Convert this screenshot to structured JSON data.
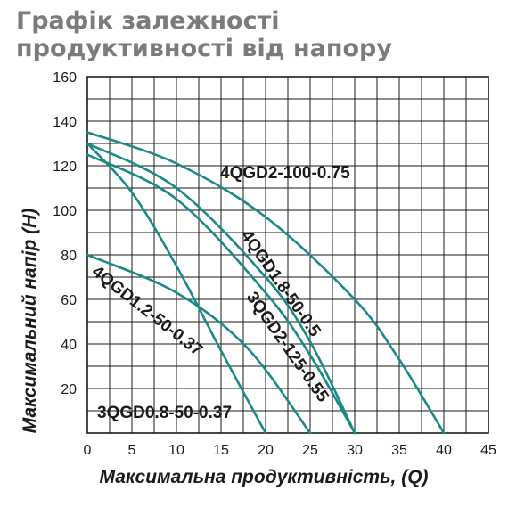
{
  "chart_data": {
    "type": "line",
    "title": "Графік залежності продуктивності від напору",
    "xlabel": "Максимальна продуктивність, (Q)",
    "ylabel": "Максимальний напір (H)",
    "xlim": [
      0,
      45
    ],
    "ylim": [
      0,
      160
    ],
    "xticks": [
      "0",
      "5",
      "10",
      "15",
      "20",
      "25",
      "30",
      "35",
      "40",
      "45"
    ],
    "yticks": [
      "20",
      "40",
      "60",
      "80",
      "100",
      "120",
      "140",
      "160"
    ],
    "grid": true,
    "line_color": "#1a8a86",
    "series": [
      {
        "name": "4QGD2-100-0.75",
        "x": [
          0,
          10,
          20,
          30,
          35,
          40
        ],
        "y": [
          135,
          121,
          97,
          60,
          33,
          0
        ]
      },
      {
        "name": "4QGD1.8-50-0.5",
        "x": [
          0,
          10,
          20,
          25,
          30
        ],
        "y": [
          130,
          110,
          70,
          41,
          0
        ]
      },
      {
        "name": "3QGD2-125-0.55",
        "x": [
          0,
          10,
          20,
          25,
          30
        ],
        "y": [
          125,
          105,
          63,
          35,
          0
        ]
      },
      {
        "name": "3QGD0.8-50-0.37",
        "x": [
          0,
          5,
          10,
          15,
          20
        ],
        "y": [
          130,
          108,
          75,
          37,
          0
        ]
      },
      {
        "name": "4QGD1.2-50-0.37",
        "x": [
          0,
          10,
          18,
          25
        ],
        "y": [
          80,
          63,
          38,
          0
        ]
      }
    ]
  }
}
